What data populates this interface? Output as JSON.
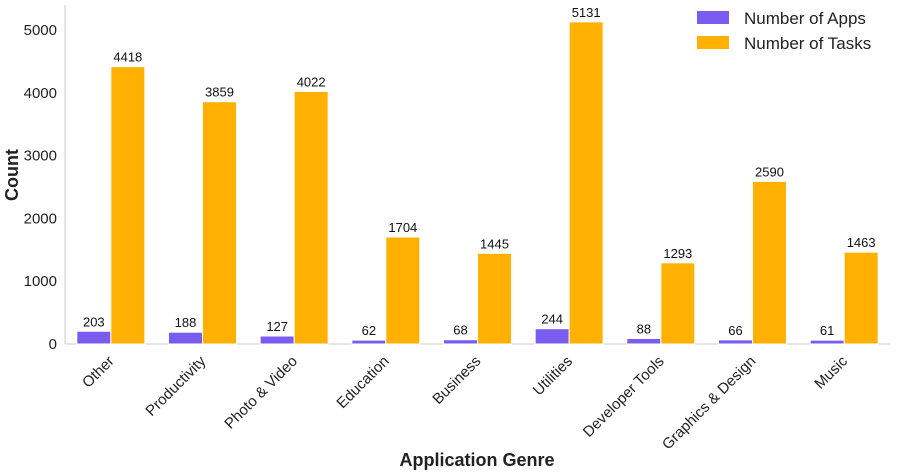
{
  "chart_data": {
    "type": "bar",
    "xlabel": "Application Genre",
    "ylabel": "Count",
    "categories": [
      "Other",
      "Productivity",
      "Photo & Video",
      "Education",
      "Business",
      "Utilities",
      "Developer Tools",
      "Graphics & Design",
      "Music"
    ],
    "series": [
      {
        "name": "Number of Apps",
        "color": "#7B5CF0",
        "values": [
          203,
          188,
          127,
          62,
          68,
          244,
          88,
          66,
          61
        ]
      },
      {
        "name": "Number of Tasks",
        "color": "#FFB000",
        "values": [
          4418,
          3859,
          4022,
          1704,
          1445,
          5131,
          1293,
          2590,
          1463
        ]
      }
    ],
    "ylim": [
      0,
      5400
    ],
    "yticks": [
      0,
      1000,
      2000,
      3000,
      4000,
      5000
    ],
    "grid": false,
    "legend": "top-right"
  }
}
